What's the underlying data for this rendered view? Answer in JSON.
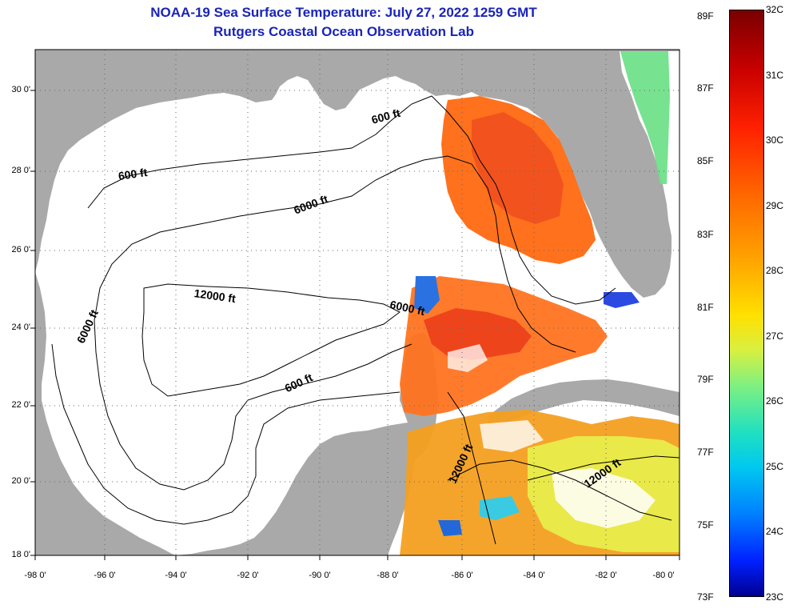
{
  "title": {
    "line1": "NOAA-19 Sea Surface Temperature:  July 27, 2022 1259 GMT",
    "line2": "Rutgers Coastal Ocean Observation Lab"
  },
  "axes": {
    "y_ticks": [
      "30 0'",
      "28 0'",
      "26 0'",
      "24 0'",
      "22 0'",
      "20 0'",
      "18 0'"
    ],
    "x_ticks": [
      "-98 0'",
      "-96 0'",
      "-94 0'",
      "-92 0'",
      "-90 0'",
      "-88 0'",
      "-86 0'",
      "-84 0'",
      "-82 0'",
      "-80 0'"
    ]
  },
  "contour_labels": [
    "600 ft",
    "600 ft",
    "6000 ft",
    "6000 ft",
    "6000 ft",
    "12000 ft",
    "600 ft",
    "12000 ft",
    "12000 ft"
  ],
  "colorbar": {
    "celsius": [
      "32C",
      "31C",
      "30C",
      "29C",
      "28C",
      "27C",
      "26C",
      "25C",
      "24C",
      "23C"
    ],
    "fahrenheit": [
      "89F",
      "87F",
      "85F",
      "83F",
      "81F",
      "79F",
      "77F",
      "75F",
      "73F"
    ]
  },
  "colors": {
    "title": "#1a24b8",
    "land": "#a9a9a9",
    "no_data": "#ffffff"
  }
}
